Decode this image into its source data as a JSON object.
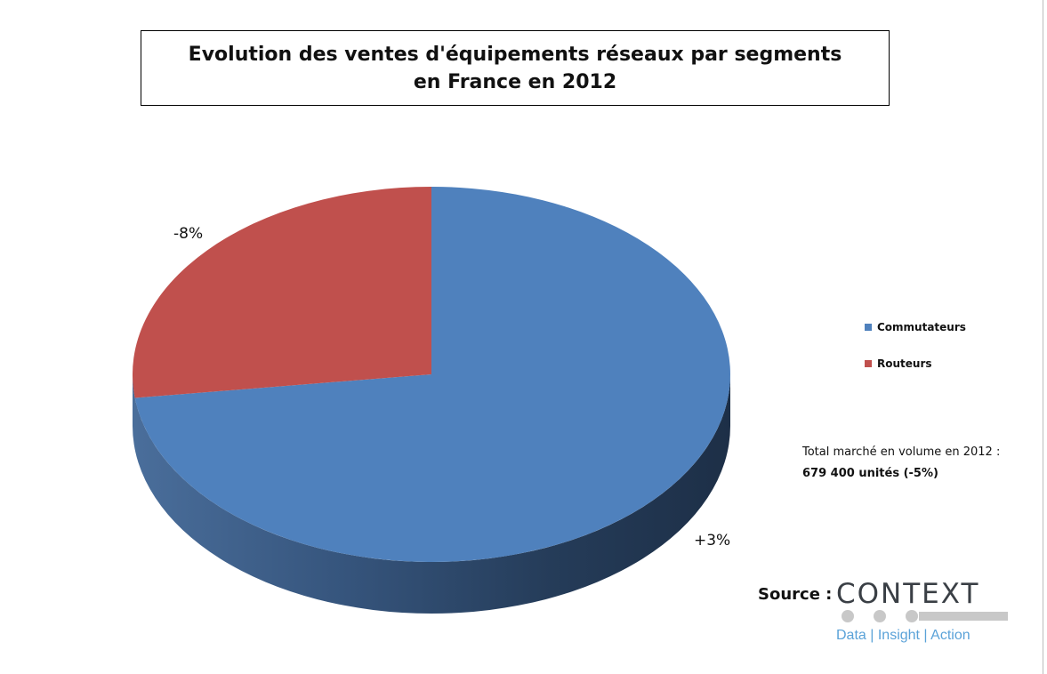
{
  "chart_data": {
    "type": "pie",
    "title": "Evolution des ventes d'équipements réseaux par segments en France en 2012",
    "title_lines": [
      "Evolution des ventes d'équipements réseaux par segments",
      "en France en 2012"
    ],
    "categories": [
      "Commutateurs",
      "Routeurs"
    ],
    "values": [
      73,
      27
    ],
    "data_labels": [
      "+3%",
      "-8%"
    ],
    "colors": [
      "#4F81BD",
      "#C0504D"
    ],
    "legend_position": "right",
    "style": "3d"
  },
  "annotations": {
    "total_line1": "Total marché en volume en 2012 :",
    "total_line2": "679 400 unités (-5%)"
  },
  "source": {
    "label": "Source :",
    "logo_text": "CONTEXT",
    "logo_tagline": "Data | Insight | Action",
    "logo_color": "#3a3f45",
    "tagline_color": "#5aa2d8"
  }
}
